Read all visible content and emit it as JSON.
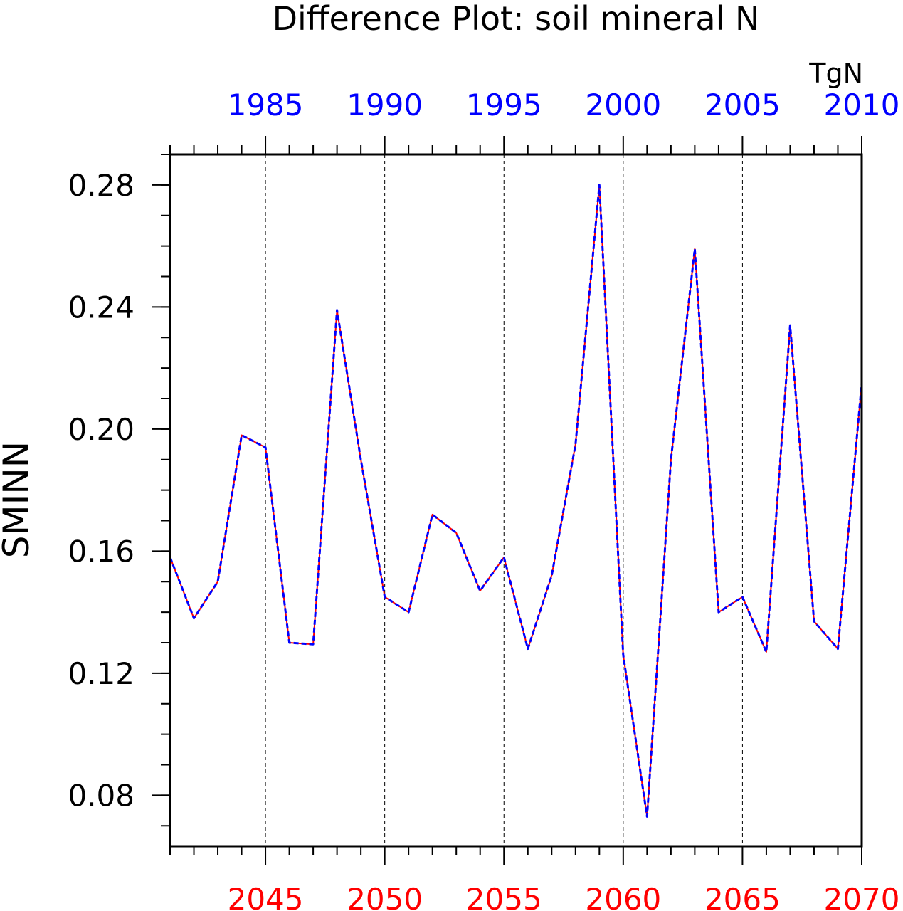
{
  "chart_data": {
    "type": "line",
    "title": "Difference Plot: soil mineral N",
    "units": "TgN",
    "ylabel": "SMINN",
    "ylim": [
      0.0633,
      0.29
    ],
    "yticks_major": [
      0.08,
      0.12,
      0.16,
      0.2,
      0.24,
      0.28
    ],
    "yticks_major_labels": [
      "0.08",
      "0.12",
      "0.16",
      "0.20",
      "0.24",
      "0.28"
    ],
    "y_minor_step": 0.01,
    "bottom_axis": {
      "color": "#ff0000",
      "xlim": [
        2041,
        2070
      ],
      "ticks": [
        2045,
        2050,
        2055,
        2060,
        2065,
        2070
      ],
      "labels": [
        "2045",
        "2050",
        "2055",
        "2060",
        "2065",
        "2070"
      ]
    },
    "top_axis": {
      "color": "#0000ff",
      "xlim": [
        1981,
        2010
      ],
      "ticks": [
        1985,
        1990,
        1995,
        2000,
        2005,
        2010
      ],
      "labels": [
        "1985",
        "1990",
        "1995",
        "2000",
        "2005",
        "2010"
      ]
    },
    "grid": {
      "vertical_dashed": [
        2045,
        2050,
        2055,
        2060,
        2065
      ]
    },
    "x": [
      2041,
      2042,
      2043,
      2044,
      2045,
      2046,
      2047,
      2048,
      2049,
      2050,
      2051,
      2052,
      2053,
      2054,
      2055,
      2056,
      2057,
      2058,
      2059,
      2060,
      2061,
      2062,
      2063,
      2064,
      2065,
      2066,
      2067,
      2068,
      2069,
      2070
    ],
    "series": [
      {
        "color": "#ff0000",
        "style": "solid",
        "values": [
          0.158,
          0.138,
          0.15,
          0.198,
          0.194,
          0.13,
          0.1295,
          0.239,
          0.19,
          0.145,
          0.14,
          0.172,
          0.166,
          0.147,
          0.158,
          0.128,
          0.152,
          0.195,
          0.28,
          0.126,
          0.073,
          0.19,
          0.259,
          0.14,
          0.145,
          0.127,
          0.234,
          0.137,
          0.128,
          0.215
        ]
      },
      {
        "color": "#0000ff",
        "style": "dashed",
        "values": [
          0.158,
          0.138,
          0.15,
          0.198,
          0.194,
          0.13,
          0.1295,
          0.239,
          0.19,
          0.145,
          0.14,
          0.172,
          0.166,
          0.147,
          0.158,
          0.128,
          0.152,
          0.195,
          0.28,
          0.126,
          0.073,
          0.19,
          0.259,
          0.14,
          0.145,
          0.127,
          0.234,
          0.137,
          0.128,
          0.215
        ]
      }
    ]
  }
}
